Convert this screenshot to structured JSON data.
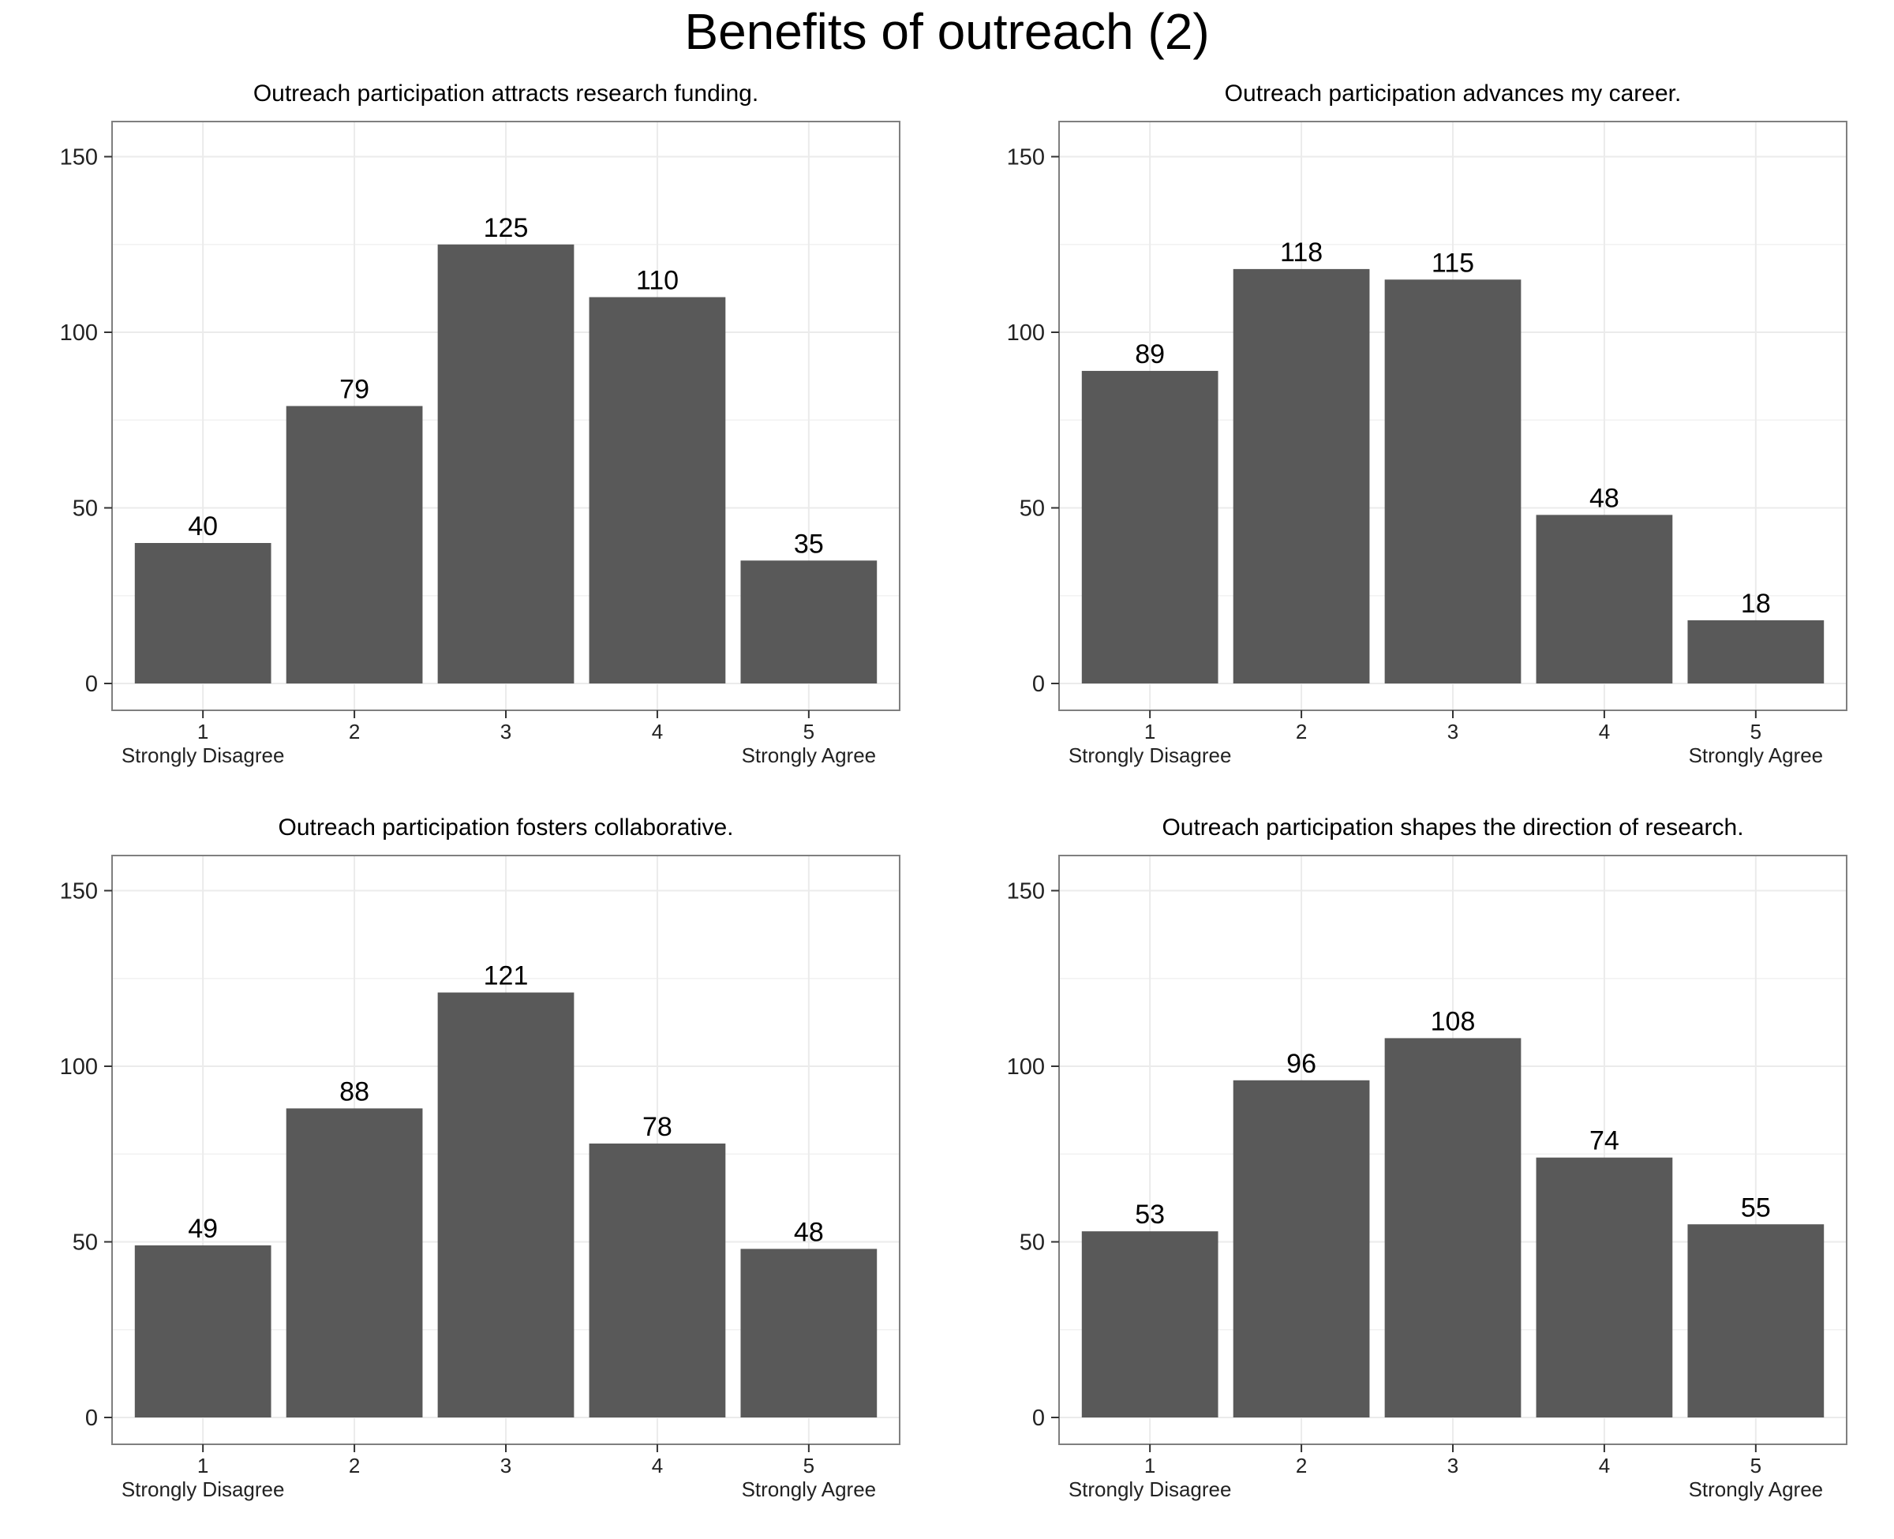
{
  "title": "Benefits of outreach (2)",
  "colors": {
    "bar": "#595959",
    "grid": "#ebebeb",
    "frame": "#7f7f7f"
  },
  "chart_data": [
    {
      "type": "bar",
      "title": "Outreach participation attracts research funding.",
      "categories": [
        "1",
        "2",
        "3",
        "4",
        "5"
      ],
      "values": [
        40,
        79,
        125,
        110,
        35
      ],
      "ylim": [
        0,
        160
      ],
      "yticks": [
        0,
        50,
        100,
        150
      ],
      "left_label": "Strongly Disagree",
      "right_label": "Strongly Agree",
      "grid": true
    },
    {
      "type": "bar",
      "title": "Outreach participation advances my career.",
      "categories": [
        "1",
        "2",
        "3",
        "4",
        "5"
      ],
      "values": [
        89,
        118,
        115,
        48,
        18
      ],
      "ylim": [
        0,
        160
      ],
      "yticks": [
        0,
        50,
        100,
        150
      ],
      "left_label": "Strongly Disagree",
      "right_label": "Strongly Agree",
      "grid": true
    },
    {
      "type": "bar",
      "title": "Outreach participation fosters collaborative.",
      "categories": [
        "1",
        "2",
        "3",
        "4",
        "5"
      ],
      "values": [
        49,
        88,
        121,
        78,
        48
      ],
      "ylim": [
        0,
        160
      ],
      "yticks": [
        0,
        50,
        100,
        150
      ],
      "left_label": "Strongly Disagree",
      "right_label": "Strongly Agree",
      "grid": true
    },
    {
      "type": "bar",
      "title": "Outreach participation shapes the direction of research.",
      "categories": [
        "1",
        "2",
        "3",
        "4",
        "5"
      ],
      "values": [
        53,
        96,
        108,
        74,
        55
      ],
      "ylim": [
        0,
        160
      ],
      "yticks": [
        0,
        50,
        100,
        150
      ],
      "left_label": "Strongly Disagree",
      "right_label": "Strongly Agree",
      "grid": true
    }
  ]
}
